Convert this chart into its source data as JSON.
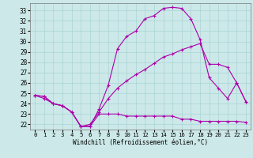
{
  "xlabel": "Windchill (Refroidissement éolien,°C)",
  "bg_color": "#cce8e8",
  "grid_color": "#aad4d4",
  "line_color": "#aa00aa",
  "xlim": [
    -0.5,
    23.5
  ],
  "ylim": [
    21.5,
    33.7
  ],
  "xticks": [
    0,
    1,
    2,
    3,
    4,
    5,
    6,
    7,
    8,
    9,
    10,
    11,
    12,
    13,
    14,
    15,
    16,
    17,
    18,
    19,
    20,
    21,
    22,
    23
  ],
  "yticks": [
    22,
    23,
    24,
    25,
    26,
    27,
    28,
    29,
    30,
    31,
    32,
    33
  ],
  "line1": {
    "x": [
      0,
      1,
      2,
      3,
      4,
      5,
      6,
      7,
      8,
      9,
      10,
      11,
      12,
      13,
      14,
      15,
      16,
      17,
      18,
      19,
      20,
      21,
      22,
      23
    ],
    "y": [
      24.8,
      24.7,
      24.0,
      23.8,
      23.2,
      21.8,
      21.8,
      23.5,
      25.8,
      29.3,
      30.5,
      31.0,
      32.2,
      32.5,
      33.2,
      33.3,
      33.2,
      32.2,
      30.2,
      26.5,
      25.5,
      24.5,
      26.0,
      24.2
    ]
  },
  "line2": {
    "x": [
      0,
      1,
      2,
      3,
      4,
      5,
      6,
      7,
      8,
      9,
      10,
      11,
      12,
      13,
      14,
      15,
      16,
      17,
      18,
      19,
      20,
      21,
      22,
      23
    ],
    "y": [
      24.8,
      24.7,
      24.0,
      23.8,
      23.2,
      21.8,
      22.0,
      23.2,
      24.5,
      25.5,
      26.2,
      26.8,
      27.3,
      27.9,
      28.5,
      28.8,
      29.2,
      29.5,
      29.8,
      27.8,
      27.8,
      27.5,
      26.0,
      24.2
    ]
  },
  "line3": {
    "x": [
      0,
      1,
      2,
      3,
      4,
      5,
      6,
      7,
      8,
      9,
      10,
      11,
      12,
      13,
      14,
      15,
      16,
      17,
      18,
      19,
      20,
      21,
      22,
      23
    ],
    "y": [
      24.8,
      24.5,
      24.0,
      23.8,
      23.2,
      21.8,
      21.8,
      23.0,
      23.0,
      23.0,
      22.8,
      22.8,
      22.8,
      22.8,
      22.8,
      22.8,
      22.5,
      22.5,
      22.3,
      22.3,
      22.3,
      22.3,
      22.3,
      22.2
    ]
  }
}
